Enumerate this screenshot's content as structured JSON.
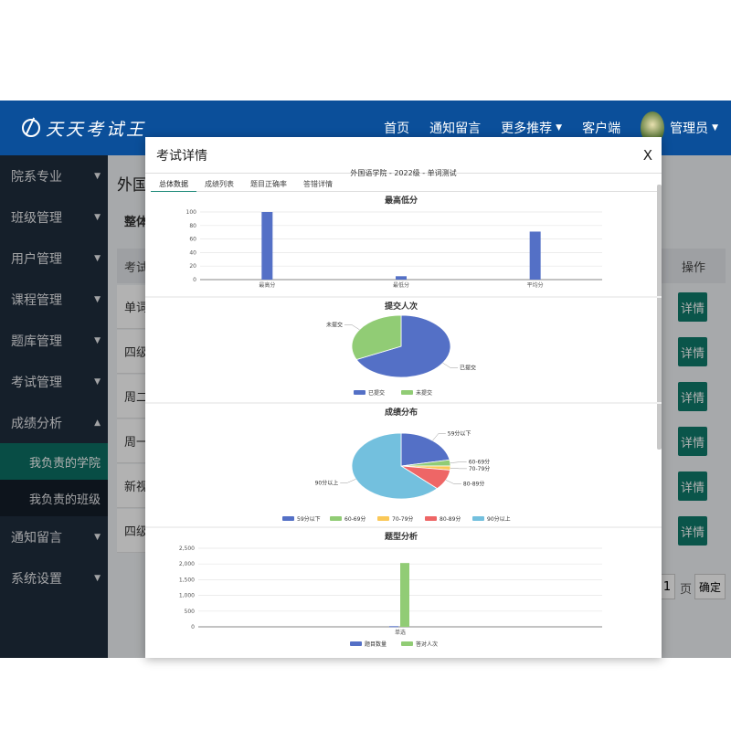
{
  "header": {
    "logo_text": "天天考试王",
    "nav": [
      "首页",
      "通知留言",
      "更多推荐",
      "客户端"
    ],
    "user": "管理员"
  },
  "sidebar": {
    "items": [
      "院系专业",
      "班级管理",
      "用户管理",
      "课程管理",
      "题库管理",
      "考试管理",
      "成绩分析"
    ],
    "subitems": [
      "我负责的学院",
      "我负责的班级"
    ],
    "items_after": [
      "通知留言",
      "系统设置"
    ]
  },
  "main": {
    "title": "外国语学院",
    "tab": "整体分析",
    "col_exam": "考试名称",
    "col_action": "操作",
    "rows": [
      "单词测试",
      "四级真题",
      "周二考试",
      "周一测试",
      "新视野测试",
      "四级真题"
    ],
    "detail_label": "详情",
    "pager_page": "1",
    "pager_unit": "页",
    "pager_confirm": "确定"
  },
  "modal": {
    "title": "考试详情",
    "close": "X",
    "subtitle": "外国语学院 - 2022级 - 单词测试",
    "tabs": [
      "总体数据",
      "成绩列表",
      "题目正确率",
      "答错详情"
    ]
  },
  "colors": {
    "blue": "#5470c6",
    "green": "#91cc75",
    "yellow": "#fac858",
    "red": "#ee6666",
    "cyan": "#73c0de",
    "header": "#0b4f9a",
    "sidebar": "#1f2d3d",
    "accent": "#0f7a6b"
  },
  "chart_data": [
    {
      "type": "bar",
      "title": "最高低分",
      "categories": [
        "最高分",
        "最低分",
        "平均分"
      ],
      "values": [
        100,
        5,
        71
      ],
      "ylim": [
        0,
        100
      ],
      "yticks": [
        0,
        20,
        40,
        60,
        80,
        100
      ]
    },
    {
      "type": "pie",
      "title": "提交人次",
      "labels": [
        "已提交",
        "未提交"
      ],
      "values": [
        68,
        32
      ],
      "legend": [
        "已提交",
        "未提交"
      ]
    },
    {
      "type": "pie",
      "title": "成绩分布",
      "labels": [
        "59分以下",
        "60-69分",
        "70-79分",
        "80-89分",
        "90分以上"
      ],
      "values": [
        22,
        3,
        2,
        10,
        63
      ],
      "legend": [
        "59分以下",
        "60-69分",
        "70-79分",
        "80-89分",
        "90分以上"
      ]
    },
    {
      "type": "bar",
      "title": "题型分析",
      "categories": [
        "单选"
      ],
      "series": [
        {
          "name": "题目数量",
          "values": [
            20
          ]
        },
        {
          "name": "答对人次",
          "values": [
            2030
          ]
        }
      ],
      "ylim": [
        0,
        2500
      ],
      "yticks": [
        0,
        500,
        1000,
        1500,
        2000,
        2500
      ]
    }
  ]
}
